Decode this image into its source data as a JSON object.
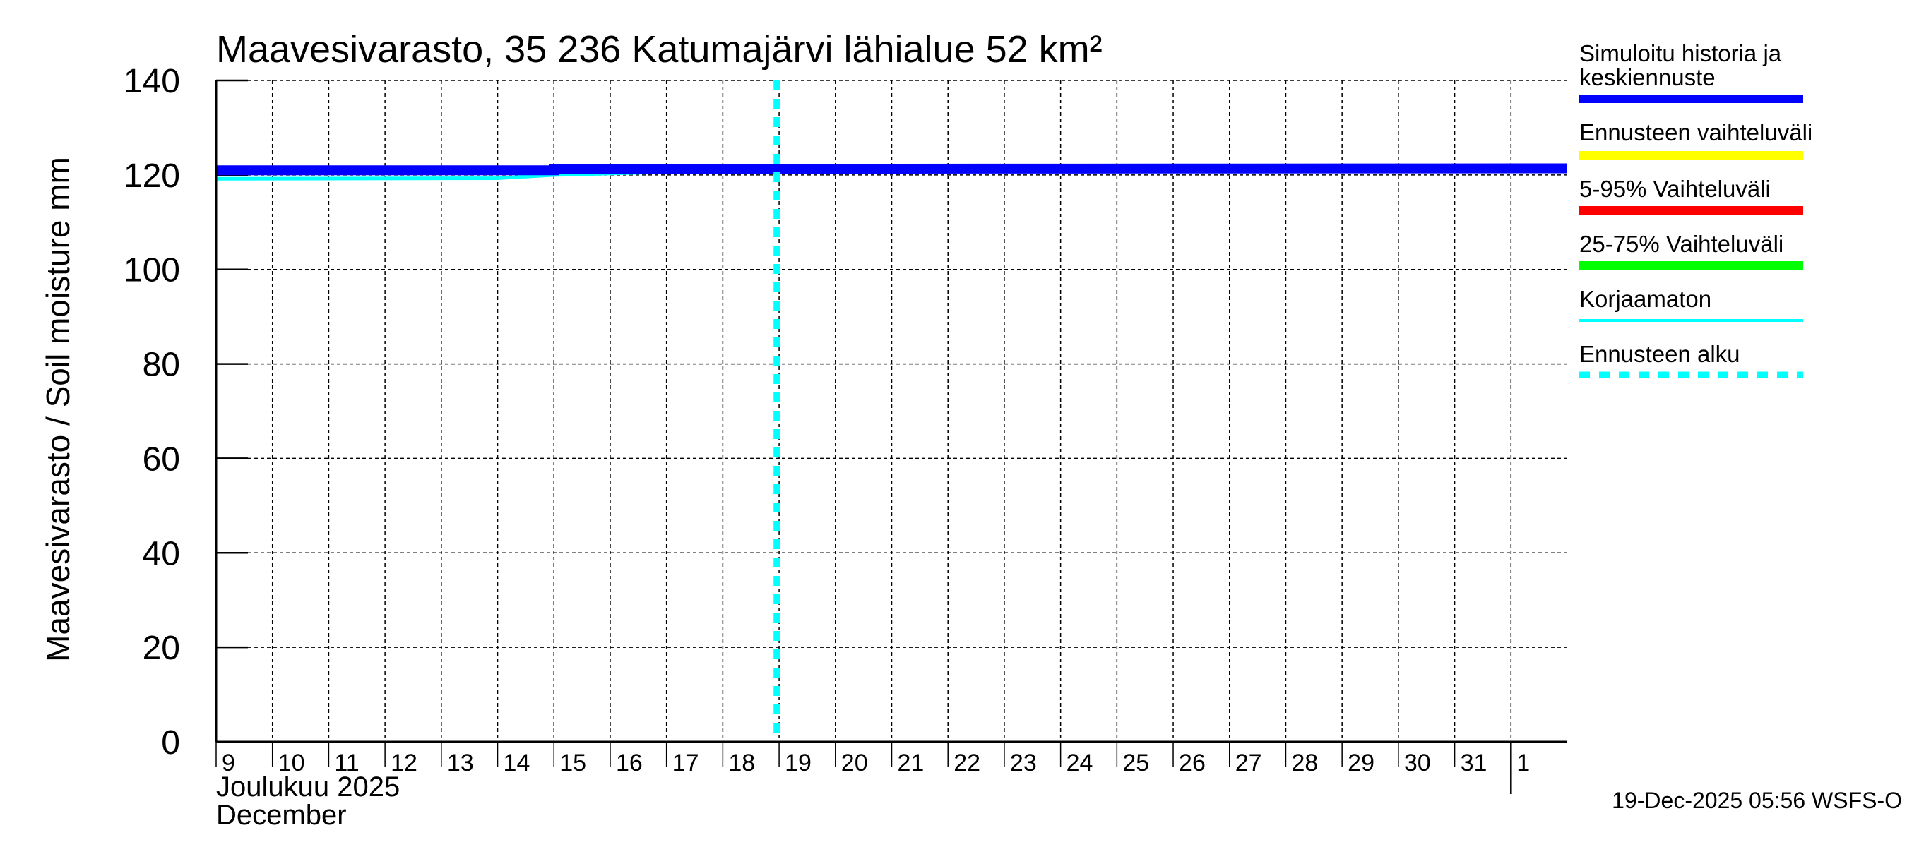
{
  "chart_data": {
    "type": "line",
    "title": "Maavesivarasto, 35 236 Katumajärvi lähialue 52 km²",
    "ylabel": "Maavesivarasto / Soil moisture   mm",
    "xlabel_line1": "Joulukuu  2025",
    "xlabel_line2": "December",
    "ylim": [
      0,
      140
    ],
    "yticks": [
      "0",
      "20",
      "40",
      "60",
      "80",
      "100",
      "120",
      "140"
    ],
    "xlim": [
      "2025-12-09",
      "2026-01-02"
    ],
    "xticks": [
      "9",
      "10",
      "11",
      "12",
      "13",
      "14",
      "15",
      "16",
      "17",
      "18",
      "19",
      "20",
      "21",
      "22",
      "23",
      "24",
      "25",
      "26",
      "27",
      "28",
      "29",
      "30",
      "31",
      "1"
    ],
    "month_boundary": "2026-01-01",
    "grid": true,
    "forecast_start": "2025-12-18T23:00",
    "series": [
      {
        "name": "Simuloitu historia ja keskiennuste",
        "color": "#0000ff",
        "points": [
          [
            "2025-12-09",
            121.0
          ],
          [
            "2025-12-15",
            121.0
          ],
          [
            "2025-12-15",
            121.3
          ],
          [
            "2026-01-02",
            121.4
          ]
        ]
      },
      {
        "name": "Korjaamaton",
        "color": "#00ffff",
        "points": [
          [
            "2025-12-09",
            119.2
          ],
          [
            "2025-12-14",
            119.3
          ],
          [
            "2025-12-15",
            120.0
          ],
          [
            "2025-12-17",
            120.6
          ],
          [
            "2025-12-18",
            121.0
          ]
        ]
      }
    ],
    "legend": [
      {
        "label_lines": [
          "Simuloitu historia ja",
          "keskiennuste"
        ],
        "color": "#0000ff",
        "style": "thick"
      },
      {
        "label_lines": [
          "Ennusteen vaihteluväli"
        ],
        "color": "#ffff00",
        "style": "thick"
      },
      {
        "label_lines": [
          "5-95% Vaihteluväli"
        ],
        "color": "#ff0000",
        "style": "thick"
      },
      {
        "label_lines": [
          "25-75% Vaihteluväli"
        ],
        "color": "#00ff00",
        "style": "thick"
      },
      {
        "label_lines": [
          "Korjaamaton"
        ],
        "color": "#00ffff",
        "style": "thin"
      },
      {
        "label_lines": [
          "Ennusteen alku"
        ],
        "color": "#00ffff",
        "style": "dashed"
      }
    ],
    "legend_placement": "right",
    "footer": "19-Dec-2025 05:56 WSFS-O"
  }
}
